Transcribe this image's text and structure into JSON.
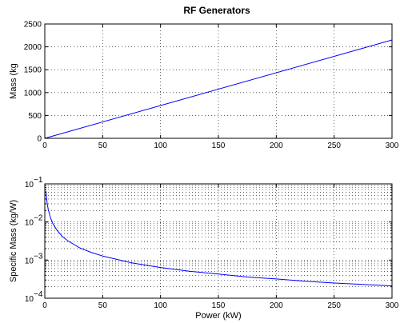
{
  "chart_data": [
    {
      "type": "line",
      "title": "RF Generators",
      "xlabel": "",
      "ylabel": "Mass (kg",
      "xlim": [
        0,
        300
      ],
      "ylim": [
        0,
        2500
      ],
      "xticks": [
        "0",
        "50",
        "100",
        "150",
        "200",
        "250",
        "300"
      ],
      "yticks": [
        "0",
        "500",
        "1000",
        "1500",
        "2000",
        "2500"
      ],
      "grid": true,
      "series": [
        {
          "color": "#0000ff",
          "x": [
            0,
            300
          ],
          "y": [
            0,
            2150
          ]
        }
      ]
    },
    {
      "type": "line",
      "title": "",
      "xlabel": "Power (kW)",
      "ylabel": "Specific Mass (kg/W)",
      "xlim": [
        0,
        300
      ],
      "ylim": [
        0.0001,
        0.1
      ],
      "yscale": "log",
      "xticks": [
        "0",
        "50",
        "100",
        "150",
        "200",
        "250",
        "300"
      ],
      "yticks": [
        {
          "base": "10",
          "exp": "−4"
        },
        {
          "base": "10",
          "exp": "−3"
        },
        {
          "base": "10",
          "exp": "−2"
        },
        {
          "base": "10",
          "exp": "−1"
        }
      ],
      "grid": true,
      "series": [
        {
          "color": "#0000ff",
          "x": [
            1,
            2,
            3,
            5,
            7,
            10,
            15,
            20,
            30,
            40,
            50,
            75,
            100,
            125,
            150,
            175,
            200,
            225,
            250,
            275,
            300
          ],
          "y": [
            0.065,
            0.0318,
            0.0212,
            0.0127,
            0.0091,
            0.0064,
            0.0042,
            0.0032,
            0.0021,
            0.0016,
            0.00128,
            0.00085,
            0.00064,
            0.00051,
            0.00043,
            0.00036,
            0.00032,
            0.00028,
            0.00025,
            0.00023,
            0.00021
          ]
        }
      ]
    }
  ]
}
